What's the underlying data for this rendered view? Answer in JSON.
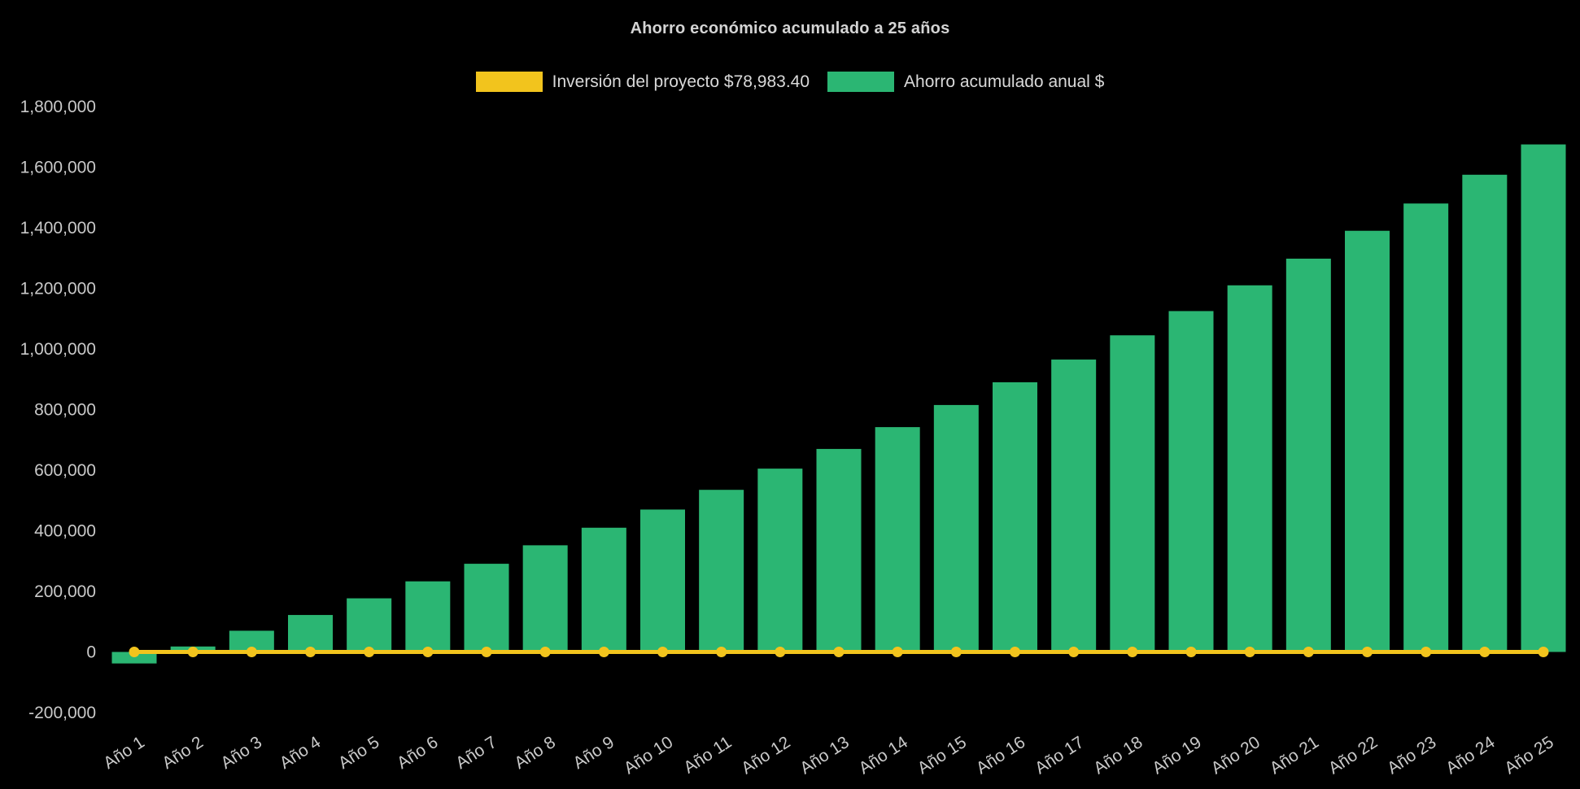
{
  "chart_data": {
    "type": "bar",
    "title": "Ahorro económico acumulado a 25 años",
    "categories": [
      "Año 1",
      "Año 2",
      "Año 3",
      "Año 4",
      "Año 5",
      "Año 6",
      "Año 7",
      "Año 8",
      "Año 9",
      "Año 10",
      "Año 11",
      "Año 12",
      "Año 13",
      "Año 14",
      "Año 15",
      "Año 16",
      "Año 17",
      "Año 18",
      "Año 19",
      "Año 20",
      "Año 21",
      "Año 22",
      "Año 23",
      "Año 24",
      "Año 25"
    ],
    "series": [
      {
        "name": "Inversión del proyecto $78,983.40",
        "type": "line",
        "color": "#F2C41D",
        "investment_amount": 78983.4,
        "plotted_value": 0,
        "point_style": "circle"
      },
      {
        "name": "Ahorro acumulado anual $",
        "type": "bar",
        "color": "#2BB673",
        "values": [
          -38000,
          18000,
          70000,
          122000,
          177000,
          233000,
          291000,
          352000,
          410000,
          470000,
          535000,
          605000,
          670000,
          742000,
          815000,
          890000,
          965000,
          1045000,
          1125000,
          1210000,
          1298000,
          1390000,
          1480000,
          1575000,
          1675000
        ]
      }
    ],
    "xlabel": "",
    "ylabel": "",
    "ylim": [
      -200000,
      1800000
    ],
    "ytick_step": 200000,
    "ytick_labels": [
      "-200,000",
      "0",
      "200,000",
      "400,000",
      "600,000",
      "800,000",
      "1,000,000",
      "1,200,000",
      "1,400,000",
      "1,600,000",
      "1,800,000"
    ],
    "grid": false,
    "legend_position": "top",
    "background_color": "#000000",
    "text_color": "#C9C9C9",
    "xtick_rotation_deg": -33
  }
}
